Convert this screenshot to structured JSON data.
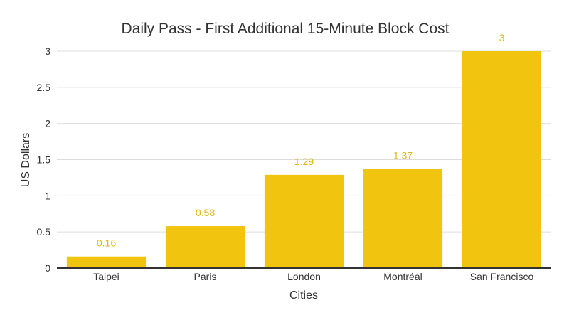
{
  "chart_data": {
    "type": "bar",
    "title": "Daily Pass - First Additional 15-Minute Block Cost",
    "xlabel": "Cities",
    "ylabel": "US Dollars",
    "categories": [
      "Taipei",
      "Paris",
      "London",
      "Montréal",
      "San Francisco"
    ],
    "values": [
      0.16,
      0.58,
      1.29,
      1.37,
      3
    ],
    "value_labels": [
      "0.16",
      "0.58",
      "1.29",
      "1.37",
      "3"
    ],
    "ylim": [
      0,
      3
    ],
    "yticks": [
      "0",
      "0.5",
      "1",
      "1.5",
      "2",
      "2.5",
      "3"
    ],
    "grid": true,
    "legend": "none",
    "colors": {
      "bar": "#f1c40f",
      "data_label": "#e2b714"
    }
  }
}
